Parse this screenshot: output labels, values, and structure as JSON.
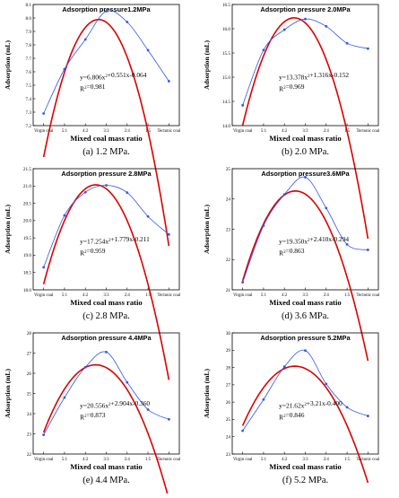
{
  "chart_data": [
    {
      "type": "line",
      "title": "Adsorption pressure1.2MPa",
      "caption": "(a) 1.2 MPa.",
      "xlabel": "Mixed coal mass ratio",
      "ylabel": "Adsorption (mL)",
      "categories": [
        "Virgin coal",
        "5:1",
        "4:2",
        "3:3",
        "2:4",
        "1:5",
        "Tectonic coal"
      ],
      "yticks": [
        "7.2",
        "7.3",
        "7.4",
        "7.5",
        "7.6",
        "7.7",
        "7.8",
        "7.9",
        "8.0",
        "8.1"
      ],
      "ylim": [
        7.2,
        8.1
      ],
      "equation": "y=6.806x²+0.551x-0.064",
      "r2": "R²=0.981",
      "fit": {
        "a": -0.148,
        "b": 1.074,
        "c": 6.04
      },
      "series": [
        {
          "name": "",
          "color": "#3355ee",
          "values": [
            7.29,
            7.62,
            7.84,
            8.05,
            7.97,
            7.76,
            7.53
          ]
        }
      ],
      "fit_color": "#dd0000",
      "grid": false
    },
    {
      "type": "line",
      "title": "Adsorption pressure 2.0MPa",
      "caption": "(b) 2.0 MPa.",
      "xlabel": "Mixed coal mass ratio",
      "ylabel": "Adsorption (mL)",
      "categories": [
        "Virgin coal",
        "5:1",
        "4:2",
        "3:3",
        "2:4",
        "1:5",
        "Tectonic coal"
      ],
      "yticks": [
        "14.0",
        "14.5",
        "15.0",
        "15.5",
        "16.0",
        "16.5"
      ],
      "ylim": [
        14.0,
        16.5
      ],
      "equation": "y=13.378x²+1.316x-0.152",
      "r2": "R²=0.969",
      "fit": {
        "a": -0.365,
        "b": 2.53,
        "c": 11.84
      },
      "series": [
        {
          "name": "",
          "color": "#3355ee",
          "values": [
            14.42,
            15.56,
            15.98,
            16.2,
            16.05,
            15.7,
            15.59
          ]
        }
      ],
      "fit_color": "#dd0000",
      "grid": false
    },
    {
      "type": "line",
      "title": "Adsorption pressure 2.8MPa",
      "caption": "(c) 2.8 MPa.",
      "xlabel": "Mixed coal mass ratio",
      "ylabel": "Adsorption (mL)",
      "categories": [
        "Virgin coal",
        "5:1",
        "4:2",
        "3:3",
        "2:4",
        "1:5",
        "Tectonic coal"
      ],
      "yticks": [
        "18.0",
        "18.5",
        "19.0",
        "19.5",
        "20.0",
        "20.5",
        "21.0",
        "21.5"
      ],
      "ylim": [
        18.0,
        21.5
      ],
      "equation": "y=17.254x²+1.779x-0.211",
      "r2": "R²=0.959",
      "fit": {
        "a": -0.46,
        "b": 3.22,
        "c": 15.4
      },
      "series": [
        {
          "name": "",
          "color": "#3355ee",
          "values": [
            18.65,
            20.15,
            20.82,
            21.02,
            20.81,
            20.12,
            19.6
          ]
        }
      ],
      "fit_color": "#dd0000",
      "grid": false
    },
    {
      "type": "line",
      "title": "Adsorption pressure3.6MPa",
      "caption": "(d) 3.6 MPa.",
      "xlabel": "Mixed coal mass ratio",
      "ylabel": "Adsorption (mL)",
      "categories": [
        "Virgin coal",
        "5:1",
        "4:2",
        "3:3",
        "2:4",
        "1:5",
        "Tectonic coal"
      ],
      "yticks": [
        "21",
        "22",
        "23",
        "24",
        "25"
      ],
      "ylim": [
        21,
        25
      ],
      "equation": "y=19.350x²+2.410x-0.294",
      "r2": "R²=0.863",
      "fit": {
        "a": -0.465,
        "b": 3.28,
        "c": 18.48
      },
      "series": [
        {
          "name": "",
          "color": "#3355ee",
          "values": [
            21.25,
            23.12,
            24.15,
            24.72,
            23.7,
            22.5,
            22.32
          ]
        }
      ],
      "fit_color": "#dd0000",
      "grid": false
    },
    {
      "type": "line",
      "title": "Adsorption pressure 4.4MPa",
      "caption": "(e) 4.4 MPa.",
      "xlabel": "Mixed coal mass ratio",
      "ylabel": "Adsorption (mL)",
      "categories": [
        "Virgin coal",
        "5:1",
        "4:2",
        "3:3",
        "2:4",
        "1:5",
        "Tectonic coal"
      ],
      "yticks": [
        "22",
        "23",
        "24",
        "25",
        "26",
        "27",
        "28"
      ],
      "ylim": [
        22,
        28
      ],
      "equation": "y=20.556x²+2.904x-0.360",
      "r2": "R²=0.873",
      "fit": {
        "a": -0.54,
        "b": 3.77,
        "c": 19.84
      },
      "series": [
        {
          "name": "",
          "color": "#3355ee",
          "values": [
            22.95,
            24.8,
            26.3,
            27.05,
            25.55,
            24.2,
            23.72
          ]
        }
      ],
      "fit_color": "#dd0000",
      "grid": false
    },
    {
      "type": "line",
      "title": "Adsorption pressure 5.2MPa",
      "caption": "(f) 5.2 MPa.",
      "xlabel": "Mixed coal mass ratio",
      "ylabel": "Adsorption (mL)",
      "categories": [
        "Virgin coal",
        "5:1",
        "4:2",
        "3:3",
        "2:4",
        "1:5",
        "Tectonic coal"
      ],
      "yticks": [
        "23",
        "24",
        "25",
        "26",
        "27",
        "28",
        "29",
        "30"
      ],
      "ylim": [
        23,
        30
      ],
      "equation": "y=21.62x²+3.21x-0.400",
      "r2": "R²=0.846",
      "fit": {
        "a": -0.55,
        "b": 3.85,
        "c": 21.34
      },
      "series": [
        {
          "name": "",
          "color": "#3355ee",
          "values": [
            24.35,
            26.15,
            28.05,
            28.98,
            27.05,
            25.7,
            25.2
          ]
        }
      ],
      "fit_color": "#dd0000",
      "grid": false
    }
  ]
}
